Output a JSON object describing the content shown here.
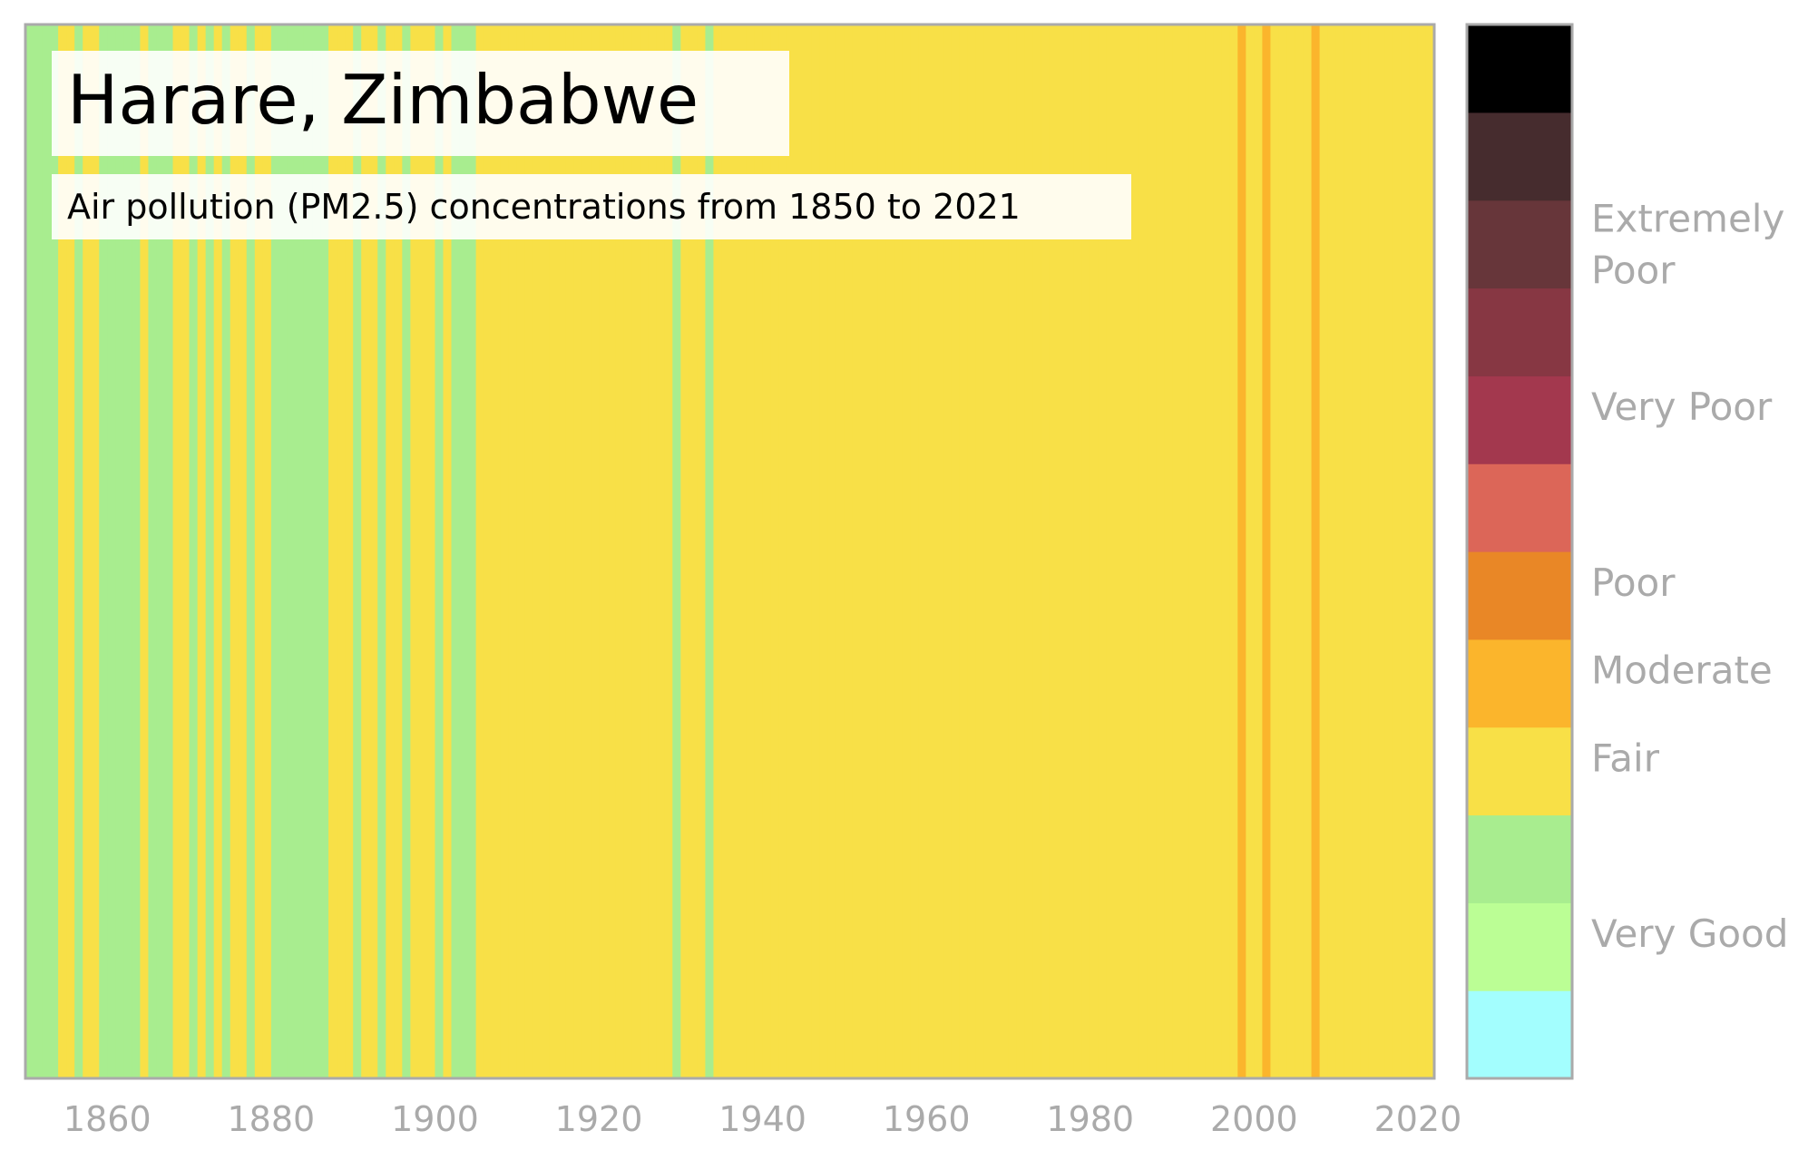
{
  "chart_data": {
    "type": "heatmap",
    "title": "Harare, Zimbabwe",
    "subtitle": "Air pollution (PM2.5) concentrations from 1850 to 2021",
    "x_range": [
      1850,
      2021
    ],
    "x_ticks": [
      "1860",
      "1880",
      "1900",
      "1920",
      "1940",
      "1960",
      "1980",
      "2000",
      "2020"
    ],
    "categories_scale": [
      {
        "label": "",
        "color": "#a3fefe"
      },
      {
        "label": "Very Good",
        "color": "#bbfe95"
      },
      {
        "label": "",
        "color": "#a8ed8f"
      },
      {
        "label": "Fair",
        "color": "#f8e047"
      },
      {
        "label": "Moderate",
        "color": "#fbb52c"
      },
      {
        "label": "Poor",
        "color": "#e98726"
      },
      {
        "label": "",
        "color": "#dc6658"
      },
      {
        "label": "Very Poor",
        "color": "#a3384e"
      },
      {
        "label": "",
        "color": "#873743"
      },
      {
        "label": "Extremely Poor",
        "color": "#67363a"
      },
      {
        "label": "",
        "color": "#462c2e"
      },
      {
        "label": "",
        "color": "#000000"
      }
    ],
    "colorbar_labels": [
      {
        "text": "Extremely Poor",
        "level": 9.5
      },
      {
        "text": "Very Poor",
        "level": 7.65
      },
      {
        "text": "Poor",
        "level": 5.65
      },
      {
        "text": "Moderate",
        "level": 4.65
      },
      {
        "text": "Fair",
        "level": 3.65
      },
      {
        "text": "Very Good",
        "level": 1.65
      }
    ],
    "years": [
      1850,
      1851,
      1852,
      1853,
      1854,
      1855,
      1856,
      1857,
      1858,
      1859,
      1860,
      1861,
      1862,
      1863,
      1864,
      1865,
      1866,
      1867,
      1868,
      1869,
      1870,
      1871,
      1872,
      1873,
      1874,
      1875,
      1876,
      1877,
      1878,
      1879,
      1880,
      1881,
      1882,
      1883,
      1884,
      1885,
      1886,
      1887,
      1888,
      1889,
      1890,
      1891,
      1892,
      1893,
      1894,
      1895,
      1896,
      1897,
      1898,
      1899,
      1900,
      1901,
      1902,
      1903,
      1904,
      1905,
      1906,
      1907,
      1908,
      1909,
      1910,
      1911,
      1912,
      1913,
      1914,
      1915,
      1916,
      1917,
      1918,
      1919,
      1920,
      1921,
      1922,
      1923,
      1924,
      1925,
      1926,
      1927,
      1928,
      1929,
      1930,
      1931,
      1932,
      1933,
      1934,
      1935,
      1936,
      1937,
      1938,
      1939,
      1940,
      1941,
      1942,
      1943,
      1944,
      1945,
      1946,
      1947,
      1948,
      1949,
      1950,
      1951,
      1952,
      1953,
      1954,
      1955,
      1956,
      1957,
      1958,
      1959,
      1960,
      1961,
      1962,
      1963,
      1964,
      1965,
      1966,
      1967,
      1968,
      1969,
      1970,
      1971,
      1972,
      1973,
      1974,
      1975,
      1976,
      1977,
      1978,
      1979,
      1980,
      1981,
      1982,
      1983,
      1984,
      1985,
      1986,
      1987,
      1988,
      1989,
      1990,
      1991,
      1992,
      1993,
      1994,
      1995,
      1996,
      1997,
      1998,
      1999,
      2000,
      2001,
      2002,
      2003,
      2004,
      2005,
      2006,
      2007,
      2008,
      2009,
      2010,
      2011,
      2012,
      2013,
      2014,
      2015,
      2016,
      2017,
      2018,
      2019,
      2020,
      2021
    ],
    "levels": [
      2,
      2,
      2,
      2,
      3,
      3,
      2,
      3,
      3,
      2,
      2,
      2,
      2,
      2,
      3,
      2,
      2,
      2,
      3,
      3,
      2,
      3,
      2,
      3,
      2,
      3,
      3,
      2,
      3,
      3,
      2,
      2,
      2,
      2,
      2,
      2,
      2,
      3,
      3,
      3,
      2,
      3,
      3,
      2,
      3,
      3,
      2,
      3,
      3,
      3,
      2,
      3,
      2,
      2,
      2,
      3,
      3,
      3,
      3,
      3,
      3,
      3,
      3,
      3,
      3,
      3,
      3,
      3,
      3,
      3,
      3,
      3,
      3,
      3,
      3,
      3,
      3,
      3,
      3,
      2,
      3,
      3,
      3,
      2,
      3,
      3,
      3,
      3,
      3,
      3,
      3,
      3,
      3,
      3,
      3,
      3,
      3,
      3,
      3,
      3,
      3,
      3,
      3,
      3,
      3,
      3,
      3,
      3,
      3,
      3,
      3,
      3,
      3,
      3,
      3,
      3,
      3,
      3,
      3,
      3,
      3,
      3,
      3,
      3,
      3,
      3,
      3,
      3,
      3,
      3,
      3,
      3,
      3,
      3,
      3,
      3,
      3,
      3,
      3,
      3,
      3,
      3,
      3,
      3,
      3,
      3,
      3,
      3,
      4,
      3,
      3,
      4,
      3,
      3,
      3,
      3,
      3,
      4,
      3,
      3,
      3,
      3,
      3,
      3,
      3,
      3,
      3,
      3,
      3,
      3,
      3,
      3
    ]
  }
}
